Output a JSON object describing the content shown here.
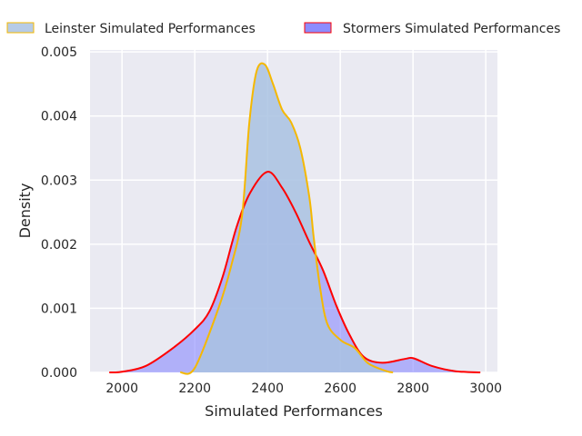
{
  "chart_data": {
    "type": "area",
    "title": "",
    "xlabel": "Simulated Performances",
    "ylabel": "Density",
    "xlim": [
      1912,
      3032
    ],
    "ylim": [
      0,
      0.00503
    ],
    "xticks": [
      "2000",
      "2200",
      "2400",
      "2600",
      "2800",
      "3000"
    ],
    "xtick_values": [
      2000,
      2200,
      2400,
      2600,
      2800,
      3000
    ],
    "yticks": [
      "0.000",
      "0.001",
      "0.002",
      "0.003",
      "0.004",
      "0.005"
    ],
    "ytick_values": [
      0,
      0.001,
      0.002,
      0.003,
      0.004,
      0.005
    ],
    "grid": true,
    "legend_position": "top",
    "series": [
      {
        "name": "Leinster Simulated Performances",
        "fill": "#a9c2e2",
        "edge": "#f5b800",
        "x": [
          2160,
          2200,
          2265,
          2300,
          2330,
          2350,
          2370,
          2393,
          2415,
          2440,
          2465,
          2490,
          2515,
          2527,
          2545,
          2565,
          2602,
          2640,
          2677,
          2727,
          2745
        ],
        "y": [
          0,
          7e-05,
          0.001,
          0.00166,
          0.00245,
          0.0039,
          0.0047,
          0.0048,
          0.0045,
          0.0041,
          0.0039,
          0.0035,
          0.00273,
          0.0021,
          0.0013,
          0.00075,
          0.0005,
          0.00038,
          0.00014,
          2e-05,
          0
        ]
      },
      {
        "name": "Stormers Simulated Performances",
        "fill": "#8080ff",
        "edge": "#ff0000",
        "x": [
          1965,
          2000,
          2065,
          2140,
          2200,
          2240,
          2277,
          2315,
          2352,
          2400,
          2440,
          2477,
          2515,
          2552,
          2590,
          2627,
          2665,
          2715,
          2777,
          2802,
          2852,
          2915,
          2985
        ],
        "y": [
          0,
          1e-05,
          0.0001,
          0.00038,
          0.00067,
          0.00095,
          0.0015,
          0.00227,
          0.0028,
          0.00313,
          0.00288,
          0.0025,
          0.00203,
          0.0016,
          0.00103,
          0.00057,
          0.00024,
          0.00015,
          0.00021,
          0.00022,
          0.0001,
          2e-05,
          0
        ]
      }
    ]
  }
}
